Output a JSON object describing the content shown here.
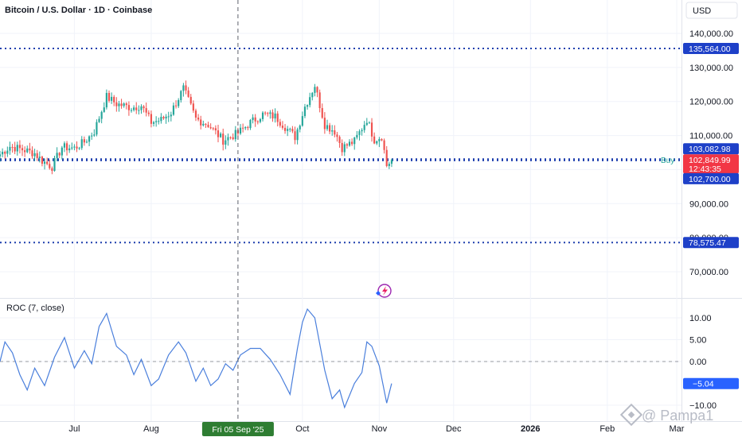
{
  "header": {
    "title": "Bitcoin / U.S. Dollar · 1D · Coinbase",
    "currency": "USD"
  },
  "price_axis": {
    "ticks": [
      "140,000.00",
      "130,000.00",
      "120,000.00",
      "110,000.00",
      "90,000.00",
      "80,000.00",
      "70,000.00"
    ]
  },
  "price_tags": {
    "level_high": "135,564.00",
    "level_mid": "103,082.98",
    "last_price": "102,849.99",
    "countdown": "12:43:35",
    "level_low_mid": "102,700.00",
    "level_low": "78,575.47"
  },
  "buy_label": "Buy",
  "roc": {
    "title": "ROC (7, close)",
    "ticks": [
      "10.00",
      "5.00",
      "0.00",
      "−10.00"
    ],
    "last_value": "−5.04"
  },
  "time_axis": {
    "labels": [
      "Jul",
      "Aug",
      "Oct",
      "Nov",
      "Dec",
      "2026",
      "Feb",
      "Mar"
    ],
    "crosshair_date": "Fri 05 Sep '25"
  },
  "watermark": "@ Pampa1",
  "colors": {
    "up": "#26a69a",
    "down": "#ef5350",
    "level_line": "#1e3fae",
    "roc_line": "#4a7fdc",
    "last_price_tag": "#f23645",
    "level_tag": "#1e40c8"
  },
  "chart_data": [
    {
      "type": "candlestick",
      "title": "Bitcoin / U.S. Dollar · 1D · Coinbase",
      "y_unit": "USD",
      "ylim": [
        65000,
        145000
      ],
      "x_range": [
        "2025-06-01",
        "2026-03-01"
      ],
      "horizontal_levels": [
        135564.0,
        103082.98,
        102700.0,
        78575.47
      ],
      "last_price": 102849.99,
      "price_path": [
        {
          "date": "2025-06-01",
          "close": 104500
        },
        {
          "date": "2025-06-05",
          "close": 106800
        },
        {
          "date": "2025-06-10",
          "close": 105900
        },
        {
          "date": "2025-06-15",
          "close": 104800
        },
        {
          "date": "2025-06-18",
          "close": 102600
        },
        {
          "date": "2025-06-22",
          "close": 100800
        },
        {
          "date": "2025-06-26",
          "close": 106600
        },
        {
          "date": "2025-07-01",
          "close": 106300
        },
        {
          "date": "2025-07-05",
          "close": 108100
        },
        {
          "date": "2025-07-09",
          "close": 111200
        },
        {
          "date": "2025-07-14",
          "close": 121400
        },
        {
          "date": "2025-07-18",
          "close": 119300
        },
        {
          "date": "2025-07-24",
          "close": 118200
        },
        {
          "date": "2025-07-28",
          "close": 118800
        },
        {
          "date": "2025-08-01",
          "close": 113900
        },
        {
          "date": "2025-08-05",
          "close": 114600
        },
        {
          "date": "2025-08-09",
          "close": 116800
        },
        {
          "date": "2025-08-14",
          "close": 123800
        },
        {
          "date": "2025-08-19",
          "close": 114900
        },
        {
          "date": "2025-08-24",
          "close": 113200
        },
        {
          "date": "2025-08-30",
          "close": 108600
        },
        {
          "date": "2025-09-05",
          "close": 110700
        },
        {
          "date": "2025-09-10",
          "close": 113800
        },
        {
          "date": "2025-09-15",
          "close": 116200
        },
        {
          "date": "2025-09-20",
          "close": 115600
        },
        {
          "date": "2025-09-24",
          "close": 112600
        },
        {
          "date": "2025-09-28",
          "close": 109600
        },
        {
          "date": "2025-10-02",
          "close": 118500
        },
        {
          "date": "2025-10-06",
          "close": 124800
        },
        {
          "date": "2025-10-10",
          "close": 113200
        },
        {
          "date": "2025-10-14",
          "close": 111300
        },
        {
          "date": "2025-10-17",
          "close": 106400
        },
        {
          "date": "2025-10-22",
          "close": 108300
        },
        {
          "date": "2025-10-27",
          "close": 114800
        },
        {
          "date": "2025-10-30",
          "close": 108800
        },
        {
          "date": "2025-11-02",
          "close": 109800
        },
        {
          "date": "2025-11-04",
          "close": 101200
        },
        {
          "date": "2025-11-06",
          "close": 102849.99
        }
      ],
      "note_label": "Buy"
    },
    {
      "type": "line",
      "title": "ROC (7, close)",
      "ylim": [
        -12,
        13
      ],
      "ticks": [
        10,
        5,
        0,
        -10
      ],
      "last_value": -5.04,
      "series": [
        {
          "points": [
            {
              "date": "2025-06-01",
              "value": 0.0
            },
            {
              "date": "2025-06-03",
              "value": 4.5
            },
            {
              "date": "2025-06-06",
              "value": 2.0
            },
            {
              "date": "2025-06-09",
              "value": -3.0
            },
            {
              "date": "2025-06-12",
              "value": -6.5
            },
            {
              "date": "2025-06-15",
              "value": -1.5
            },
            {
              "date": "2025-06-19",
              "value": -5.5
            },
            {
              "date": "2025-06-23",
              "value": 1.0
            },
            {
              "date": "2025-06-27",
              "value": 5.5
            },
            {
              "date": "2025-07-01",
              "value": -1.5
            },
            {
              "date": "2025-07-05",
              "value": 2.5
            },
            {
              "date": "2025-07-08",
              "value": -0.5
            },
            {
              "date": "2025-07-11",
              "value": 8.0
            },
            {
              "date": "2025-07-14",
              "value": 11.0
            },
            {
              "date": "2025-07-18",
              "value": 3.5
            },
            {
              "date": "2025-07-22",
              "value": 1.5
            },
            {
              "date": "2025-07-25",
              "value": -3.0
            },
            {
              "date": "2025-07-28",
              "value": 0.5
            },
            {
              "date": "2025-08-01",
              "value": -5.5
            },
            {
              "date": "2025-08-04",
              "value": -4.0
            },
            {
              "date": "2025-08-08",
              "value": 1.5
            },
            {
              "date": "2025-08-12",
              "value": 4.5
            },
            {
              "date": "2025-08-15",
              "value": 2.0
            },
            {
              "date": "2025-08-19",
              "value": -4.5
            },
            {
              "date": "2025-08-22",
              "value": -1.5
            },
            {
              "date": "2025-08-25",
              "value": -5.5
            },
            {
              "date": "2025-08-28",
              "value": -4.0
            },
            {
              "date": "2025-08-31",
              "value": -0.5
            },
            {
              "date": "2025-09-03",
              "value": -2.0
            },
            {
              "date": "2025-09-06",
              "value": 1.5
            },
            {
              "date": "2025-09-10",
              "value": 3.0
            },
            {
              "date": "2025-09-14",
              "value": 3.0
            },
            {
              "date": "2025-09-18",
              "value": 0.5
            },
            {
              "date": "2025-09-22",
              "value": -3.0
            },
            {
              "date": "2025-09-26",
              "value": -7.5
            },
            {
              "date": "2025-09-29",
              "value": 3.0
            },
            {
              "date": "2025-10-01",
              "value": 9.0
            },
            {
              "date": "2025-10-03",
              "value": 12.0
            },
            {
              "date": "2025-10-06",
              "value": 10.0
            },
            {
              "date": "2025-10-10",
              "value": -2.0
            },
            {
              "date": "2025-10-13",
              "value": -8.5
            },
            {
              "date": "2025-10-16",
              "value": -6.5
            },
            {
              "date": "2025-10-18",
              "value": -10.5
            },
            {
              "date": "2025-10-22",
              "value": -5.0
            },
            {
              "date": "2025-10-25",
              "value": -2.5
            },
            {
              "date": "2025-10-27",
              "value": 4.5
            },
            {
              "date": "2025-10-29",
              "value": 3.5
            },
            {
              "date": "2025-11-01",
              "value": -1.0
            },
            {
              "date": "2025-11-04",
              "value": -9.5
            },
            {
              "date": "2025-11-06",
              "value": -5.04
            }
          ]
        }
      ]
    }
  ]
}
